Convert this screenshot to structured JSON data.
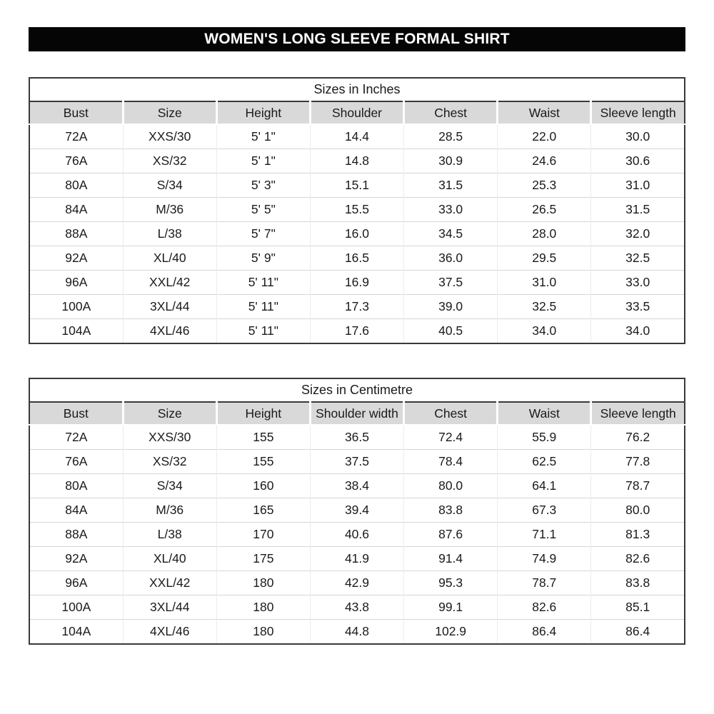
{
  "title": {
    "text": "WOMEN'S LONG SLEEVE FORMAL SHIRT",
    "bg": "#050505",
    "color": "#ffffff"
  },
  "colors": {
    "header_row_bg": "#d9d9d9",
    "outer_border": "#3a3a3a",
    "row_divider": "#d6d6d6"
  },
  "tables": [
    {
      "caption": "Sizes in Inches",
      "columns": [
        "Bust",
        "Size",
        "Height",
        "Shoulder",
        "Chest",
        "Waist",
        "Sleeve length"
      ],
      "rows": [
        [
          "72A",
          "XXS/30",
          "5' 1\"",
          "14.4",
          "28.5",
          "22.0",
          "30.0"
        ],
        [
          "76A",
          "XS/32",
          "5' 1\"",
          "14.8",
          "30.9",
          "24.6",
          "30.6"
        ],
        [
          "80A",
          "S/34",
          "5' 3\"",
          "15.1",
          "31.5",
          "25.3",
          "31.0"
        ],
        [
          "84A",
          "M/36",
          "5' 5\"",
          "15.5",
          "33.0",
          "26.5",
          "31.5"
        ],
        [
          "88A",
          "L/38",
          "5' 7\"",
          "16.0",
          "34.5",
          "28.0",
          "32.0"
        ],
        [
          "92A",
          "XL/40",
          "5' 9\"",
          "16.5",
          "36.0",
          "29.5",
          "32.5"
        ],
        [
          "96A",
          "XXL/42",
          "5' 11\"",
          "16.9",
          "37.5",
          "31.0",
          "33.0"
        ],
        [
          "100A",
          "3XL/44",
          "5' 11\"",
          "17.3",
          "39.0",
          "32.5",
          "33.5"
        ],
        [
          "104A",
          "4XL/46",
          "5' 11\"",
          "17.6",
          "40.5",
          "34.0",
          "34.0"
        ]
      ]
    },
    {
      "caption": "Sizes in Centimetre",
      "columns": [
        "Bust",
        "Size",
        "Height",
        "Shoulder width",
        "Chest",
        "Waist",
        "Sleeve length"
      ],
      "rows": [
        [
          "72A",
          "XXS/30",
          "155",
          "36.5",
          "72.4",
          "55.9",
          "76.2"
        ],
        [
          "76A",
          "XS/32",
          "155",
          "37.5",
          "78.4",
          "62.5",
          "77.8"
        ],
        [
          "80A",
          "S/34",
          "160",
          "38.4",
          "80.0",
          "64.1",
          "78.7"
        ],
        [
          "84A",
          "M/36",
          "165",
          "39.4",
          "83.8",
          "67.3",
          "80.0"
        ],
        [
          "88A",
          "L/38",
          "170",
          "40.6",
          "87.6",
          "71.1",
          "81.3"
        ],
        [
          "92A",
          "XL/40",
          "175",
          "41.9",
          "91.4",
          "74.9",
          "82.6"
        ],
        [
          "96A",
          "XXL/42",
          "180",
          "42.9",
          "95.3",
          "78.7",
          "83.8"
        ],
        [
          "100A",
          "3XL/44",
          "180",
          "43.8",
          "99.1",
          "82.6",
          "85.1"
        ],
        [
          "104A",
          "4XL/46",
          "180",
          "44.8",
          "102.9",
          "86.4",
          "86.4"
        ]
      ]
    }
  ]
}
